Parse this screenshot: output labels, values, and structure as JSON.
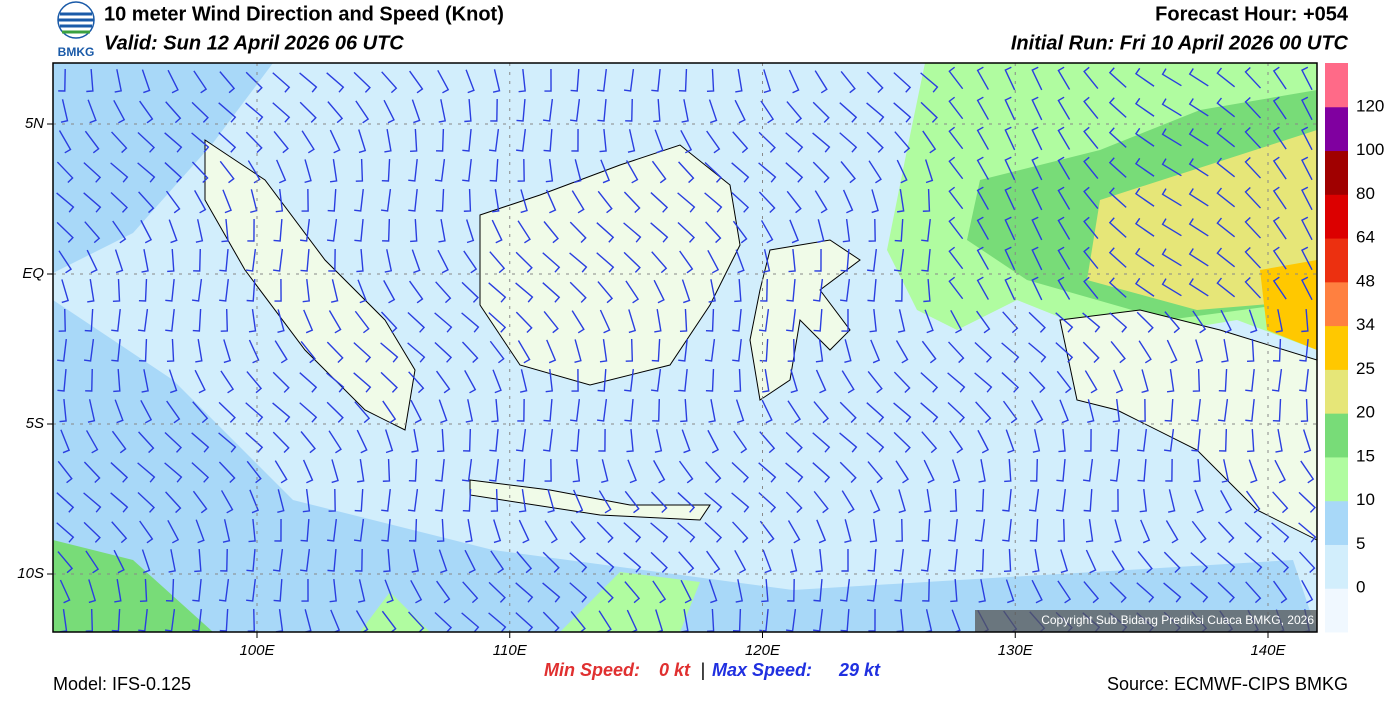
{
  "header": {
    "title": "10 meter Wind Direction and Speed (Knot)",
    "valid": "Valid: Sun 12 April 2026 06 UTC",
    "forecast_hour": "Forecast Hour: +054",
    "initial_run": "Initial Run: Fri 10 April 2026 00 UTC",
    "logo_text": "BMKG"
  },
  "map": {
    "lon_labels": [
      "100E",
      "110E",
      "120E",
      "130E",
      "140E"
    ],
    "lat_labels": [
      "5N",
      "EQ",
      "5S",
      "10S"
    ],
    "copyright": "Copyright Sub Bidang Prediksi Cuaca BMKG, 2026"
  },
  "colorbar": {
    "colors": [
      "#f0f8ff",
      "#d2eefc",
      "#a8d8f8",
      "#b0fca0",
      "#78dc78",
      "#e6e678",
      "#ffc800",
      "#ff8040",
      "#ec3010",
      "#dc0000",
      "#a00000",
      "#8000a0",
      "#ff6a88"
    ],
    "labels": [
      "0",
      "5",
      "10",
      "15",
      "20",
      "25",
      "34",
      "48",
      "64",
      "80",
      "100",
      "120"
    ]
  },
  "footer": {
    "model": "Model: IFS-0.125",
    "min_label": "Min Speed:",
    "min_value": "0 kt",
    "separator": "|",
    "max_label": "Max Speed:",
    "max_value": "29 kt",
    "source": "Source: ECMWF-CIPS BMKG"
  }
}
